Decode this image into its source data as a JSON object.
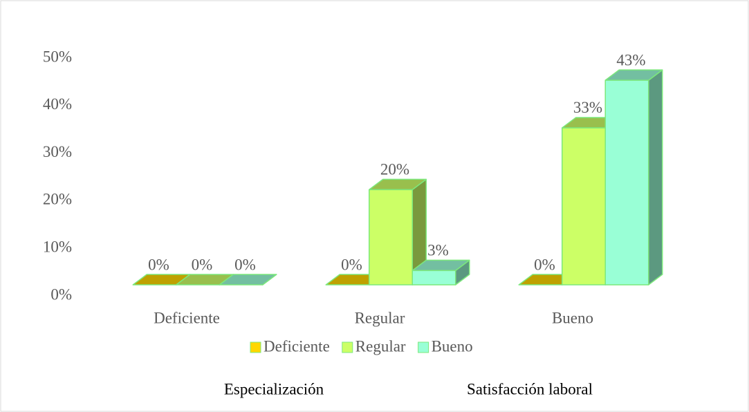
{
  "chart_data": {
    "type": "bar3d",
    "categories": [
      "Deficiente",
      "Regular",
      "Bueno"
    ],
    "series": [
      {
        "name": "Deficiente",
        "color": "#ffd700",
        "values": [
          0,
          0,
          0
        ],
        "value_labels": [
          "0%",
          "0%",
          "0%"
        ]
      },
      {
        "name": "Regular",
        "color": "#ccff66",
        "values": [
          0,
          20,
          33
        ],
        "value_labels": [
          "0%",
          "20%",
          "33%"
        ]
      },
      {
        "name": "Bueno",
        "color": "#99ffd6",
        "values": [
          0,
          3,
          43
        ],
        "value_labels": [
          "0%",
          "3%",
          "43%"
        ]
      }
    ],
    "ylim": [
      0,
      50
    ],
    "yticks": [
      {
        "value": 0,
        "label": "0%"
      },
      {
        "value": 10,
        "label": "10%"
      },
      {
        "value": 20,
        "label": "20%"
      },
      {
        "value": 30,
        "label": "30%"
      },
      {
        "value": 40,
        "label": "40%"
      },
      {
        "value": 50,
        "label": "50%"
      }
    ],
    "annotations": [
      "Especialización",
      "Satisfacción laboral"
    ]
  }
}
